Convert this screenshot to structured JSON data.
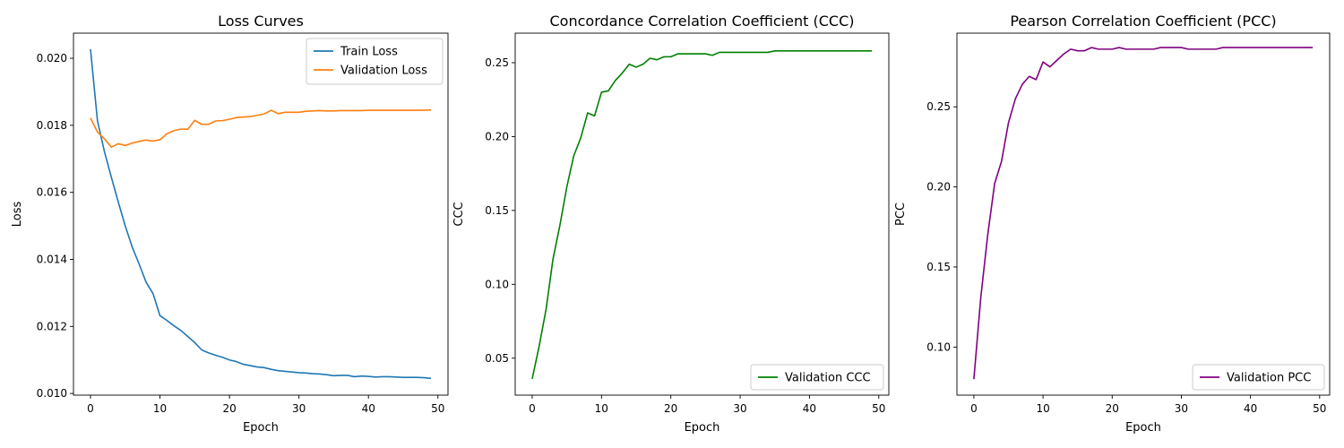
{
  "chart_data": [
    {
      "type": "line",
      "title": "Loss Curves",
      "xlabel": "Epoch",
      "ylabel": "Loss",
      "xlim": [
        -2.45,
        51.45
      ],
      "ylim": [
        0.00995,
        0.02075
      ],
      "xticks": [
        0,
        10,
        20,
        30,
        40,
        50
      ],
      "yticks": [
        0.01,
        0.012,
        0.014,
        0.016,
        0.018,
        0.02
      ],
      "ytick_decimals": 3,
      "legend": "top-right",
      "series": [
        {
          "name": "Train Loss",
          "color": "#1f77b4",
          "values": [
            0.02027,
            0.01814,
            0.01722,
            0.01645,
            0.01571,
            0.015,
            0.01437,
            0.01386,
            0.01332,
            0.01298,
            0.01232,
            0.01218,
            0.01202,
            0.01188,
            0.0117,
            0.01152,
            0.0113,
            0.01121,
            0.01114,
            0.01108,
            0.011,
            0.01095,
            0.01087,
            0.01083,
            0.01079,
            0.01077,
            0.01072,
            0.01068,
            0.01066,
            0.01064,
            0.01062,
            0.01061,
            0.01059,
            0.01058,
            0.01056,
            0.01053,
            0.01054,
            0.01054,
            0.0105,
            0.01052,
            0.01051,
            0.01049,
            0.0105,
            0.0105,
            0.01049,
            0.01048,
            0.01048,
            0.01048,
            0.01047,
            0.01045
          ]
        },
        {
          "name": "Validation Loss",
          "color": "#ff7f0e",
          "values": [
            0.01822,
            0.0178,
            0.0176,
            0.01735,
            0.01745,
            0.0174,
            0.01747,
            0.01752,
            0.01756,
            0.01753,
            0.01757,
            0.01775,
            0.01784,
            0.01789,
            0.01788,
            0.01815,
            0.01803,
            0.01803,
            0.01813,
            0.01814,
            0.01818,
            0.01823,
            0.01825,
            0.01826,
            0.0183,
            0.01834,
            0.01845,
            0.01835,
            0.01839,
            0.01839,
            0.01839,
            0.01842,
            0.01843,
            0.01844,
            0.01843,
            0.01843,
            0.01844,
            0.01844,
            0.01844,
            0.01844,
            0.01845,
            0.01845,
            0.01845,
            0.01845,
            0.01845,
            0.01845,
            0.01845,
            0.01845,
            0.01845,
            0.01846
          ]
        }
      ]
    },
    {
      "type": "line",
      "title": "Concordance Correlation Coefficient (CCC)",
      "xlabel": "Epoch",
      "ylabel": "CCC",
      "xlim": [
        -2.45,
        51.45
      ],
      "ylim": [
        0.025,
        0.27
      ],
      "xticks": [
        0,
        10,
        20,
        30,
        40,
        50
      ],
      "yticks": [
        0.05,
        0.1,
        0.15,
        0.2,
        0.25
      ],
      "ytick_decimals": 2,
      "legend": "bottom-right",
      "series": [
        {
          "name": "Validation CCC",
          "color": "#008000",
          "values": [
            0.036,
            0.058,
            0.083,
            0.117,
            0.14,
            0.166,
            0.187,
            0.199,
            0.216,
            0.214,
            0.23,
            0.231,
            0.238,
            0.243,
            0.249,
            0.247,
            0.249,
            0.253,
            0.252,
            0.254,
            0.254,
            0.256,
            0.256,
            0.256,
            0.256,
            0.256,
            0.255,
            0.257,
            0.257,
            0.257,
            0.257,
            0.257,
            0.257,
            0.257,
            0.257,
            0.258,
            0.258,
            0.258,
            0.258,
            0.258,
            0.258,
            0.258,
            0.258,
            0.258,
            0.258,
            0.258,
            0.258,
            0.258,
            0.258,
            0.258
          ]
        }
      ]
    },
    {
      "type": "line",
      "title": "Pearson Correlation Coefficient (PCC)",
      "xlabel": "Epoch",
      "ylabel": "PCC",
      "xlim": [
        -2.45,
        51.45
      ],
      "ylim": [
        0.07,
        0.296
      ],
      "xticks": [
        0,
        10,
        20,
        30,
        40,
        50
      ],
      "yticks": [
        0.1,
        0.15,
        0.2,
        0.25
      ],
      "ytick_decimals": 2,
      "legend": "bottom-right",
      "series": [
        {
          "name": "Validation PCC",
          "color": "#800080",
          "values": [
            0.08,
            0.131,
            0.17,
            0.202,
            0.216,
            0.24,
            0.255,
            0.264,
            0.269,
            0.267,
            0.278,
            0.275,
            0.279,
            0.283,
            0.286,
            0.285,
            0.285,
            0.287,
            0.286,
            0.286,
            0.286,
            0.287,
            0.286,
            0.286,
            0.286,
            0.286,
            0.286,
            0.287,
            0.287,
            0.287,
            0.287,
            0.286,
            0.286,
            0.286,
            0.286,
            0.286,
            0.287,
            0.287,
            0.287,
            0.287,
            0.287,
            0.287,
            0.287,
            0.287,
            0.287,
            0.287,
            0.287,
            0.287,
            0.287,
            0.287
          ]
        }
      ]
    }
  ]
}
